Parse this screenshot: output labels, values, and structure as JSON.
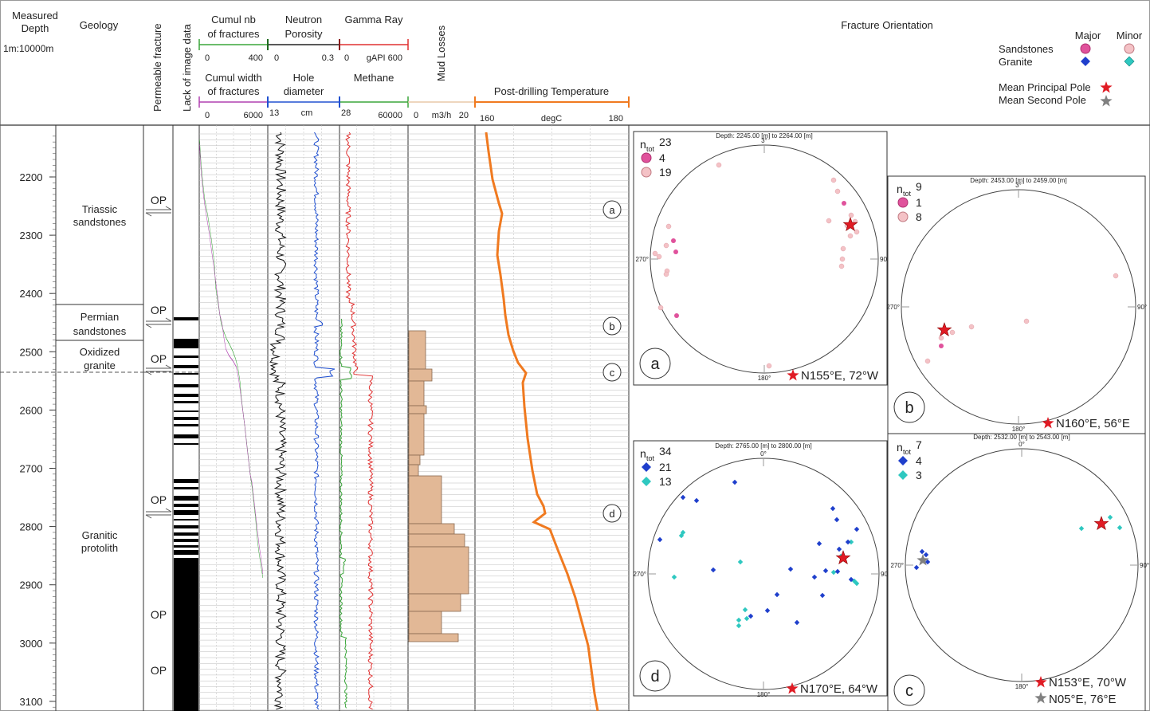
{
  "header": {
    "depth_title": [
      "Measured",
      "Depth"
    ],
    "depth_scale": "1m:10000m",
    "geology_title": "Geology",
    "permeable_title": "Permeable fracture",
    "lack_title": "Lack of image data",
    "cumul_nb_title": [
      "Cumul nb",
      "of fractures"
    ],
    "cumul_nb_ticks": [
      "0",
      "400"
    ],
    "neutron_title": [
      "Neutron",
      "Porosity"
    ],
    "neutron_ticks": [
      "0",
      "0.3"
    ],
    "gamma_title": "Gamma Ray",
    "gamma_ticks": [
      "0",
      "gAPI 600"
    ],
    "cumul_width_title": [
      "Cumul width",
      "of fractures"
    ],
    "cumul_width_ticks": [
      "0",
      "6000"
    ],
    "hole_title": [
      "Hole",
      "diameter"
    ],
    "hole_ticks": [
      "13",
      "cm"
    ],
    "methane_title": "Methane",
    "methane_ticks": [
      "28",
      "60000"
    ],
    "mud_title": "Mud Losses",
    "mud_ticks": [
      "0",
      "m3/h",
      "20"
    ],
    "temp_title": "Post-drilling Temperature",
    "temp_ticks": [
      "160",
      "degC",
      "180"
    ],
    "orientation_title": "Fracture Orientation"
  },
  "legend": {
    "major": "Major",
    "minor": "Minor",
    "sandstones": "Sandstones",
    "granite": "Granite",
    "mean_principal": "Mean Principal Pole",
    "mean_second": "Mean Second Pole",
    "colors": {
      "sand_major": "#e0529c",
      "sand_minor": "#f4c2c6",
      "granite_major": "#1f3fcc",
      "granite_minor": "#2ec8c0",
      "principal_star": "#e01b24",
      "second_star": "#808080"
    }
  },
  "depth_axis": [
    "2200",
    "2300",
    "2400",
    "2500",
    "2600",
    "2700",
    "2800",
    "2900",
    "3000",
    "3100"
  ],
  "geology_units": [
    [
      "Triassic",
      "sandstones"
    ],
    [
      "Permian",
      "sandstones"
    ],
    [
      "Oxidized",
      "granite"
    ],
    [
      "Granitic",
      "protolith"
    ]
  ],
  "op_label": "OP",
  "markers": [
    "a",
    "b",
    "c",
    "d"
  ],
  "stereonets": [
    {
      "id": "a",
      "depth": "Depth: 2245.00 [m] to 2264.00 [m]",
      "ntot": "23",
      "counts": [
        "4",
        "19"
      ],
      "result": "N155°E, 72°W",
      "dirs": [
        "3°",
        "90°",
        "180°",
        "270°"
      ]
    },
    {
      "id": "b",
      "depth": "Depth: 2453.00 [m] to 2459.00 [m]",
      "ntot": "9",
      "counts": [
        "1",
        "8"
      ],
      "result": "N160°E, 56°E",
      "dirs": [
        "3°",
        "90°",
        "180°",
        "270°"
      ]
    },
    {
      "id": "d",
      "depth": "Depth: 2765.00 [m] to 2800.00 [m]",
      "ntot": "34",
      "counts": [
        "21",
        "13"
      ],
      "result": "N170°E, 64°W",
      "dirs": [
        "0°",
        "90°",
        "180°",
        "270°"
      ]
    },
    {
      "id": "c",
      "depth": "Depth: 2532.00 [m] to 2543.00 [m]",
      "ntot": "7",
      "counts": [
        "4",
        "3"
      ],
      "result": "N153°E, 70°W",
      "result2": "N05°E, 76°E",
      "dirs": [
        "0°",
        "90°",
        "180°",
        "270°"
      ]
    }
  ]
}
